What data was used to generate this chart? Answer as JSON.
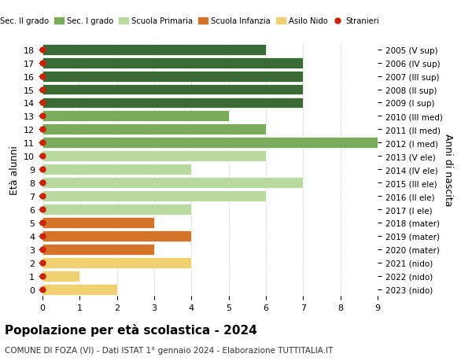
{
  "ages": [
    0,
    1,
    2,
    3,
    4,
    5,
    6,
    7,
    8,
    9,
    10,
    11,
    12,
    13,
    14,
    15,
    16,
    17,
    18
  ],
  "right_labels": [
    "2023 (nido)",
    "2022 (nido)",
    "2021 (nido)",
    "2020 (mater)",
    "2019 (mater)",
    "2018 (mater)",
    "2017 (I ele)",
    "2016 (II ele)",
    "2015 (III ele)",
    "2014 (IV ele)",
    "2013 (V ele)",
    "2012 (I med)",
    "2011 (II med)",
    "2010 (III med)",
    "2009 (I sup)",
    "2008 (II sup)",
    "2007 (III sup)",
    "2006 (IV sup)",
    "2005 (V sup)"
  ],
  "bar_values": [
    2,
    1,
    4,
    3,
    4,
    3,
    4,
    6,
    7,
    4,
    6,
    9,
    6,
    5,
    7,
    7,
    7,
    7,
    6
  ],
  "bar_colors": [
    "#f0d070",
    "#f0d070",
    "#f0d070",
    "#d4732a",
    "#d4732a",
    "#d4732a",
    "#b8d9a0",
    "#b8d9a0",
    "#b8d9a0",
    "#b8d9a0",
    "#b8d9a0",
    "#7aab5a",
    "#7aab5a",
    "#7aab5a",
    "#3a6b35",
    "#3a6b35",
    "#3a6b35",
    "#3a6b35",
    "#3a6b35"
  ],
  "legend_labels": [
    "Sec. II grado",
    "Sec. I grado",
    "Scuola Primaria",
    "Scuola Infanzia",
    "Asilo Nido",
    "Stranieri"
  ],
  "legend_colors": [
    "#3a6b35",
    "#7aab5a",
    "#b8d9a0",
    "#d4732a",
    "#f0d070",
    "#cc2200"
  ],
  "ylabel_left": "Età alunni",
  "ylabel_right": "Anni di nascita",
  "title": "Popolazione per età scolastica - 2024",
  "subtitle": "COMUNE DI FOZA (VI) - Dati ISTAT 1° gennaio 2024 - Elaborazione TUTTITALIA.IT",
  "xlim": [
    0,
    9
  ],
  "xticks": [
    0,
    1,
    2,
    3,
    4,
    5,
    6,
    7,
    8,
    9
  ],
  "background_color": "#ffffff",
  "grid_color": "#cccccc",
  "dot_color": "#cc2200",
  "dot_size": 25
}
